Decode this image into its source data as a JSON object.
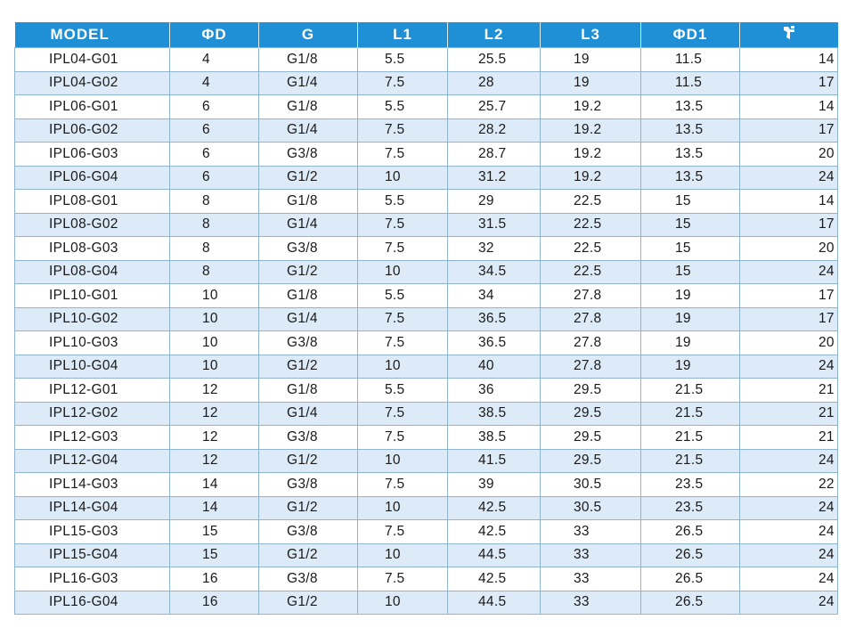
{
  "table": {
    "headers": {
      "model": "MODEL",
      "d": "ΦD",
      "g": "G",
      "l1": "L1",
      "l2": "L2",
      "l3": "L3",
      "d1": "ΦD1",
      "wrench_icon": "wrench-icon"
    },
    "rows": [
      [
        "IPL04-G01",
        "4",
        "G1/8",
        "5.5",
        "25.5",
        "19",
        "11.5",
        "14"
      ],
      [
        "IPL04-G02",
        "4",
        "G1/4",
        "7.5",
        "28",
        "19",
        "11.5",
        "17"
      ],
      [
        "IPL06-G01",
        "6",
        "G1/8",
        "5.5",
        "25.7",
        "19.2",
        "13.5",
        "14"
      ],
      [
        "IPL06-G02",
        "6",
        "G1/4",
        "7.5",
        "28.2",
        "19.2",
        "13.5",
        "17"
      ],
      [
        "IPL06-G03",
        "6",
        "G3/8",
        "7.5",
        "28.7",
        "19.2",
        "13.5",
        "20"
      ],
      [
        "IPL06-G04",
        "6",
        "G1/2",
        "10",
        "31.2",
        "19.2",
        "13.5",
        "24"
      ],
      [
        "IPL08-G01",
        "8",
        "G1/8",
        "5.5",
        "29",
        "22.5",
        "15",
        "14"
      ],
      [
        "IPL08-G02",
        "8",
        "G1/4",
        "7.5",
        "31.5",
        "22.5",
        "15",
        "17"
      ],
      [
        "IPL08-G03",
        "8",
        "G3/8",
        "7.5",
        "32",
        "22.5",
        "15",
        "20"
      ],
      [
        "IPL08-G04",
        "8",
        "G1/2",
        "10",
        "34.5",
        "22.5",
        "15",
        "24"
      ],
      [
        "IPL10-G01",
        "10",
        "G1/8",
        "5.5",
        "34",
        "27.8",
        "19",
        "17"
      ],
      [
        "IPL10-G02",
        "10",
        "G1/4",
        "7.5",
        "36.5",
        "27.8",
        "19",
        "17"
      ],
      [
        "IPL10-G03",
        "10",
        "G3/8",
        "7.5",
        "36.5",
        "27.8",
        "19",
        "20"
      ],
      [
        "IPL10-G04",
        "10",
        "G1/2",
        "10",
        "40",
        "27.8",
        "19",
        "24"
      ],
      [
        "IPL12-G01",
        "12",
        "G1/8",
        "5.5",
        "36",
        "29.5",
        "21.5",
        "21"
      ],
      [
        "IPL12-G02",
        "12",
        "G1/4",
        "7.5",
        "38.5",
        "29.5",
        "21.5",
        "21"
      ],
      [
        "IPL12-G03",
        "12",
        "G3/8",
        "7.5",
        "38.5",
        "29.5",
        "21.5",
        "21"
      ],
      [
        "IPL12-G04",
        "12",
        "G1/2",
        "10",
        "41.5",
        "29.5",
        "21.5",
        "24"
      ],
      [
        "IPL14-G03",
        "14",
        "G3/8",
        "7.5",
        "39",
        "30.5",
        "23.5",
        "22"
      ],
      [
        "IPL14-G04",
        "14",
        "G1/2",
        "10",
        "42.5",
        "30.5",
        "23.5",
        "24"
      ],
      [
        "IPL15-G03",
        "15",
        "G3/8",
        "7.5",
        "42.5",
        "33",
        "26.5",
        "24"
      ],
      [
        "IPL15-G04",
        "15",
        "G1/2",
        "10",
        "44.5",
        "33",
        "26.5",
        "24"
      ],
      [
        "IPL16-G03",
        "16",
        "G3/8",
        "7.5",
        "42.5",
        "33",
        "26.5",
        "24"
      ],
      [
        "IPL16-G04",
        "16",
        "G1/2",
        "10",
        "44.5",
        "33",
        "26.5",
        "24"
      ]
    ]
  },
  "colors": {
    "header_bg": "#1f8fd6",
    "header_text": "#ffffff",
    "row_alt_bg": "#ddebf8",
    "grid_line": "#8fb4cf"
  }
}
